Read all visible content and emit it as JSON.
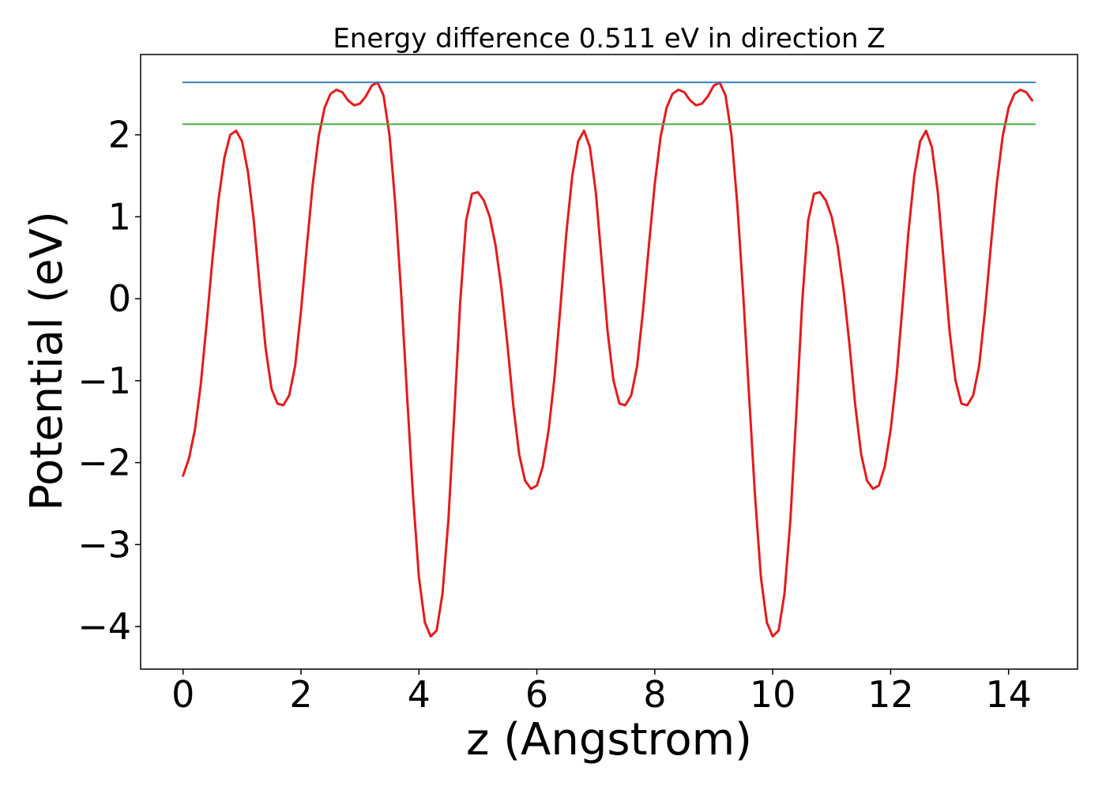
{
  "chart_data": {
    "type": "line",
    "title": "Energy difference 0.511 eV in direction Z",
    "xlabel": "z (Angstrom)",
    "ylabel": "Potential (eV)",
    "xlim": [
      -0.72,
      15.17
    ],
    "ylim": [
      -4.52,
      2.98
    ],
    "x_ticks": [
      0,
      2,
      4,
      6,
      8,
      10,
      12,
      14
    ],
    "x_tick_labels": [
      "0",
      "2",
      "4",
      "6",
      "8",
      "10",
      "12",
      "14"
    ],
    "y_ticks": [
      2,
      1,
      0,
      -1,
      -2,
      -3,
      -4
    ],
    "y_tick_labels": [
      "2",
      "1",
      "0",
      "−1",
      "−2",
      "−3",
      "−4"
    ],
    "grid": false,
    "legend": "none",
    "series": [
      {
        "color": "#e41a1c",
        "x": [
          0.0,
          0.1,
          0.2,
          0.3,
          0.4,
          0.5,
          0.6,
          0.7,
          0.8,
          0.9,
          1.0,
          1.1,
          1.2,
          1.3,
          1.4,
          1.5,
          1.6,
          1.7,
          1.8,
          1.9,
          2.0,
          2.1,
          2.2,
          2.3,
          2.4,
          2.5,
          2.6,
          2.7,
          2.8,
          2.9,
          3.0,
          3.1,
          3.2,
          3.3,
          3.4,
          3.5,
          3.6,
          3.7,
          3.8,
          3.9,
          4.0,
          4.1,
          4.2,
          4.3,
          4.4,
          4.5,
          4.6,
          4.7,
          4.8,
          4.9,
          5.0,
          5.1,
          5.2,
          5.3,
          5.4,
          5.5,
          5.6,
          5.7,
          5.8,
          5.9,
          6.0,
          6.1,
          6.2,
          6.3,
          6.4,
          6.5,
          6.6,
          6.7,
          6.8,
          6.9,
          7.0,
          7.1,
          7.2,
          7.3,
          7.4,
          7.5,
          7.6,
          7.7,
          7.8,
          7.9,
          8.0,
          8.1,
          8.2,
          8.3,
          8.4,
          8.5,
          8.6,
          8.7,
          8.8,
          8.9,
          9.0,
          9.1,
          9.2,
          9.3,
          9.4,
          9.5,
          9.6,
          9.7,
          9.8,
          9.9,
          10.0,
          10.1,
          10.2,
          10.3,
          10.4,
          10.5,
          10.6,
          10.7,
          10.8,
          10.9,
          11.0,
          11.1,
          11.2,
          11.3,
          11.4,
          11.5,
          11.6,
          11.7,
          11.8,
          11.9,
          12.0,
          12.1,
          12.2,
          12.3,
          12.4,
          12.5,
          12.6,
          12.7,
          12.8,
          12.9,
          13.0,
          13.1,
          13.2,
          13.3,
          13.4,
          13.5,
          13.6,
          13.7,
          13.8,
          13.9,
          14.0,
          14.1,
          14.2,
          14.3,
          14.4
        ],
        "y": [
          -2.16,
          -1.95,
          -1.6,
          -1.05,
          -0.3,
          0.5,
          1.2,
          1.72,
          2.0,
          2.05,
          1.92,
          1.55,
          0.95,
          0.15,
          -0.6,
          -1.1,
          -1.28,
          -1.3,
          -1.18,
          -0.82,
          -0.15,
          0.65,
          1.4,
          1.98,
          2.33,
          2.5,
          2.55,
          2.52,
          2.42,
          2.36,
          2.38,
          2.47,
          2.6,
          2.64,
          2.48,
          2.0,
          1.15,
          0.05,
          -1.2,
          -2.4,
          -3.4,
          -3.95,
          -4.12,
          -4.05,
          -3.6,
          -2.7,
          -1.4,
          -0.05,
          0.95,
          1.28,
          1.3,
          1.2,
          1.0,
          0.65,
          0.12,
          -0.55,
          -1.3,
          -1.9,
          -2.22,
          -2.32,
          -2.28,
          -2.05,
          -1.6,
          -0.95,
          -0.1,
          0.8,
          1.5,
          1.92,
          2.05,
          1.85,
          1.3,
          0.45,
          -0.4,
          -1.0,
          -1.28,
          -1.3,
          -1.18,
          -0.82,
          -0.15,
          0.65,
          1.4,
          1.98,
          2.33,
          2.5,
          2.55,
          2.52,
          2.42,
          2.36,
          2.38,
          2.47,
          2.6,
          2.64,
          2.48,
          2.0,
          1.15,
          0.05,
          -1.2,
          -2.4,
          -3.4,
          -3.95,
          -4.12,
          -4.05,
          -3.6,
          -2.7,
          -1.4,
          -0.05,
          0.95,
          1.28,
          1.3,
          1.2,
          1.0,
          0.65,
          0.12,
          -0.55,
          -1.3,
          -1.9,
          -2.22,
          -2.32,
          -2.28,
          -2.05,
          -1.6,
          -0.95,
          -0.1,
          0.8,
          1.5,
          1.92,
          2.05,
          1.85,
          1.3,
          0.45,
          -0.4,
          -1.0,
          -1.28,
          -1.3,
          -1.18,
          -0.82,
          -0.15,
          0.65,
          1.4,
          1.98,
          2.33,
          2.5,
          2.55,
          2.52,
          2.42
        ]
      },
      {
        "color": "#377eb8",
        "x": [
          0.0,
          14.45
        ],
        "y": [
          2.64,
          2.64
        ]
      },
      {
        "color": "#4daf4a",
        "x": [
          0.0,
          14.45
        ],
        "y": [
          2.13,
          2.13
        ]
      }
    ]
  }
}
